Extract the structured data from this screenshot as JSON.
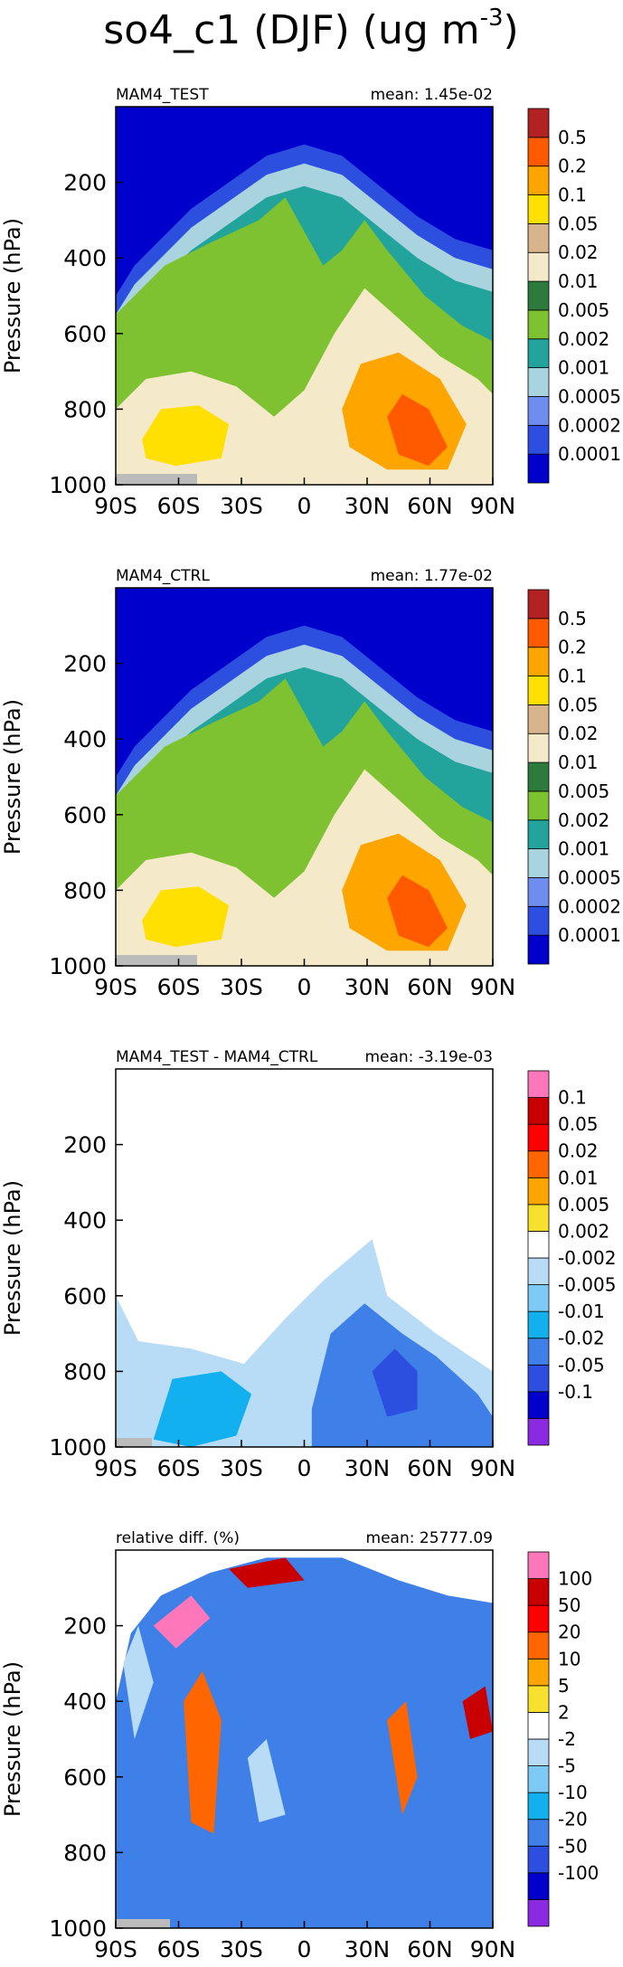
{
  "figure": {
    "title": "so4_c1 (DJF) (ug m",
    "title_superscript": "-3",
    "title_suffix": ")"
  },
  "chart_data": [
    {
      "type": "heatmap",
      "panel_label": "MAM4_TEST",
      "mean_text": "mean: 1.45e-02",
      "ylabel": "Pressure (hPa)",
      "x_ticks": [
        "90S",
        "60S",
        "30S",
        "0",
        "30N",
        "60N",
        "90N"
      ],
      "x_tick_values": [
        -90,
        -60,
        -30,
        0,
        30,
        60,
        90
      ],
      "y_ticks": [
        "200",
        "400",
        "600",
        "800",
        "1000"
      ],
      "y_tick_values": [
        200,
        400,
        600,
        800,
        1000
      ],
      "xlim": [
        -90,
        90
      ],
      "ylim": [
        1000,
        0
      ],
      "colorbar": {
        "labels": [
          "0.5",
          "0.2",
          "0.1",
          "0.05",
          "0.02",
          "0.01",
          "0.005",
          "0.002",
          "0.001",
          "0.0005",
          "0.0002",
          "0.0001"
        ],
        "colors": [
          "#0000cd",
          "#2c4fe0",
          "#6d8ef0",
          "#a9d3de",
          "#22a39c",
          "#7ec232",
          "#2d7a3c",
          "#f4e9c8",
          "#d7b48c",
          "#ffe000",
          "#ffa500",
          "#ff5a00",
          "#b22222"
        ]
      }
    },
    {
      "type": "heatmap",
      "panel_label": "MAM4_CTRL",
      "mean_text": "mean: 1.77e-02",
      "ylabel": "Pressure (hPa)",
      "x_ticks": [
        "90S",
        "60S",
        "30S",
        "0",
        "30N",
        "60N",
        "90N"
      ],
      "x_tick_values": [
        -90,
        -60,
        -30,
        0,
        30,
        60,
        90
      ],
      "y_ticks": [
        "200",
        "400",
        "600",
        "800",
        "1000"
      ],
      "y_tick_values": [
        200,
        400,
        600,
        800,
        1000
      ],
      "xlim": [
        -90,
        90
      ],
      "ylim": [
        1000,
        0
      ],
      "colorbar": {
        "labels": [
          "0.5",
          "0.2",
          "0.1",
          "0.05",
          "0.02",
          "0.01",
          "0.005",
          "0.002",
          "0.001",
          "0.0005",
          "0.0002",
          "0.0001"
        ],
        "colors": [
          "#0000cd",
          "#2c4fe0",
          "#6d8ef0",
          "#a9d3de",
          "#22a39c",
          "#7ec232",
          "#2d7a3c",
          "#f4e9c8",
          "#d7b48c",
          "#ffe000",
          "#ffa500",
          "#ff5a00",
          "#b22222"
        ]
      }
    },
    {
      "type": "heatmap",
      "panel_label": "MAM4_TEST - MAM4_CTRL",
      "mean_text": "mean: -3.19e-03",
      "ylabel": "Pressure (hPa)",
      "x_ticks": [
        "90S",
        "60S",
        "30S",
        "0",
        "30N",
        "60N",
        "90N"
      ],
      "x_tick_values": [
        -90,
        -60,
        -30,
        0,
        30,
        60,
        90
      ],
      "y_ticks": [
        "200",
        "400",
        "600",
        "800",
        "1000"
      ],
      "y_tick_values": [
        200,
        400,
        600,
        800,
        1000
      ],
      "xlim": [
        -90,
        90
      ],
      "ylim": [
        1000,
        0
      ],
      "colorbar": {
        "labels": [
          "0.1",
          "0.05",
          "0.02",
          "0.01",
          "0.005",
          "0.002",
          "-0.002",
          "-0.005",
          "-0.01",
          "-0.02",
          "-0.05",
          "-0.1"
        ],
        "colors": [
          "#8a2be2",
          "#0000cd",
          "#2c4fe0",
          "#3f7fe8",
          "#12b0ef",
          "#7ccaf5",
          "#b9dcf6",
          "#ffffff",
          "#f8e02e",
          "#ffa500",
          "#ff6600",
          "#ff0000",
          "#c80000",
          "#ff77bb"
        ]
      }
    },
    {
      "type": "heatmap",
      "panel_label": "relative diff. (%)",
      "mean_text": "mean: 25777.09",
      "ylabel": "Pressure (hPa)",
      "x_ticks": [
        "90S",
        "60S",
        "30S",
        "0",
        "30N",
        "60N",
        "90N"
      ],
      "x_tick_values": [
        -90,
        -60,
        -30,
        0,
        30,
        60,
        90
      ],
      "y_ticks": [
        "200",
        "400",
        "600",
        "800",
        "1000"
      ],
      "y_tick_values": [
        200,
        400,
        600,
        800,
        1000
      ],
      "xlim": [
        -90,
        90
      ],
      "ylim": [
        1000,
        0
      ],
      "colorbar": {
        "labels": [
          "100",
          "50",
          "20",
          "10",
          "5",
          "2",
          "-2",
          "-5",
          "-10",
          "-20",
          "-50",
          "-100"
        ],
        "colors": [
          "#8a2be2",
          "#0000cd",
          "#2c4fe0",
          "#3f7fe8",
          "#12b0ef",
          "#7ccaf5",
          "#b9dcf6",
          "#ffffff",
          "#f8e02e",
          "#ffa500",
          "#ff6600",
          "#ff0000",
          "#c80000",
          "#ff77bb"
        ]
      }
    }
  ]
}
